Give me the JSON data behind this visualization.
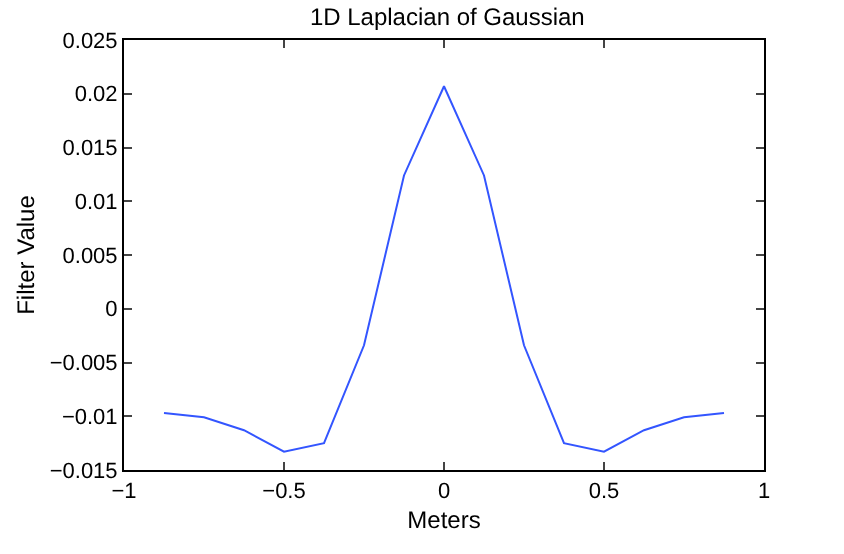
{
  "chart_data": {
    "type": "line",
    "title": "1D Laplacian of Gaussian",
    "xlabel": "Meters",
    "ylabel": "Filter Value",
    "x": [
      -0.875,
      -0.75,
      -0.625,
      -0.5,
      -0.375,
      -0.25,
      -0.125,
      0,
      0.125,
      0.25,
      0.375,
      0.5,
      0.625,
      0.75,
      0.875
    ],
    "series": [
      {
        "color": "#3355ff",
        "values": [
          -0.0097,
          -0.0101,
          -0.0113,
          -0.0133,
          -0.0125,
          -0.0034,
          0.0124,
          0.0207,
          0.0124,
          -0.0034,
          -0.0125,
          -0.0133,
          -0.0113,
          -0.0101,
          -0.0097
        ]
      }
    ],
    "xlim": [
      -1,
      1
    ],
    "xticks": [
      -1,
      -0.5,
      0,
      0.5,
      1
    ],
    "ylim": [
      -0.015,
      0.025
    ],
    "yticks": [
      -0.015,
      -0.01,
      -0.005,
      0,
      0.005,
      0.01,
      0.015,
      0.02,
      0.025
    ],
    "grid": false,
    "marker": "none",
    "line_style": "solid"
  }
}
